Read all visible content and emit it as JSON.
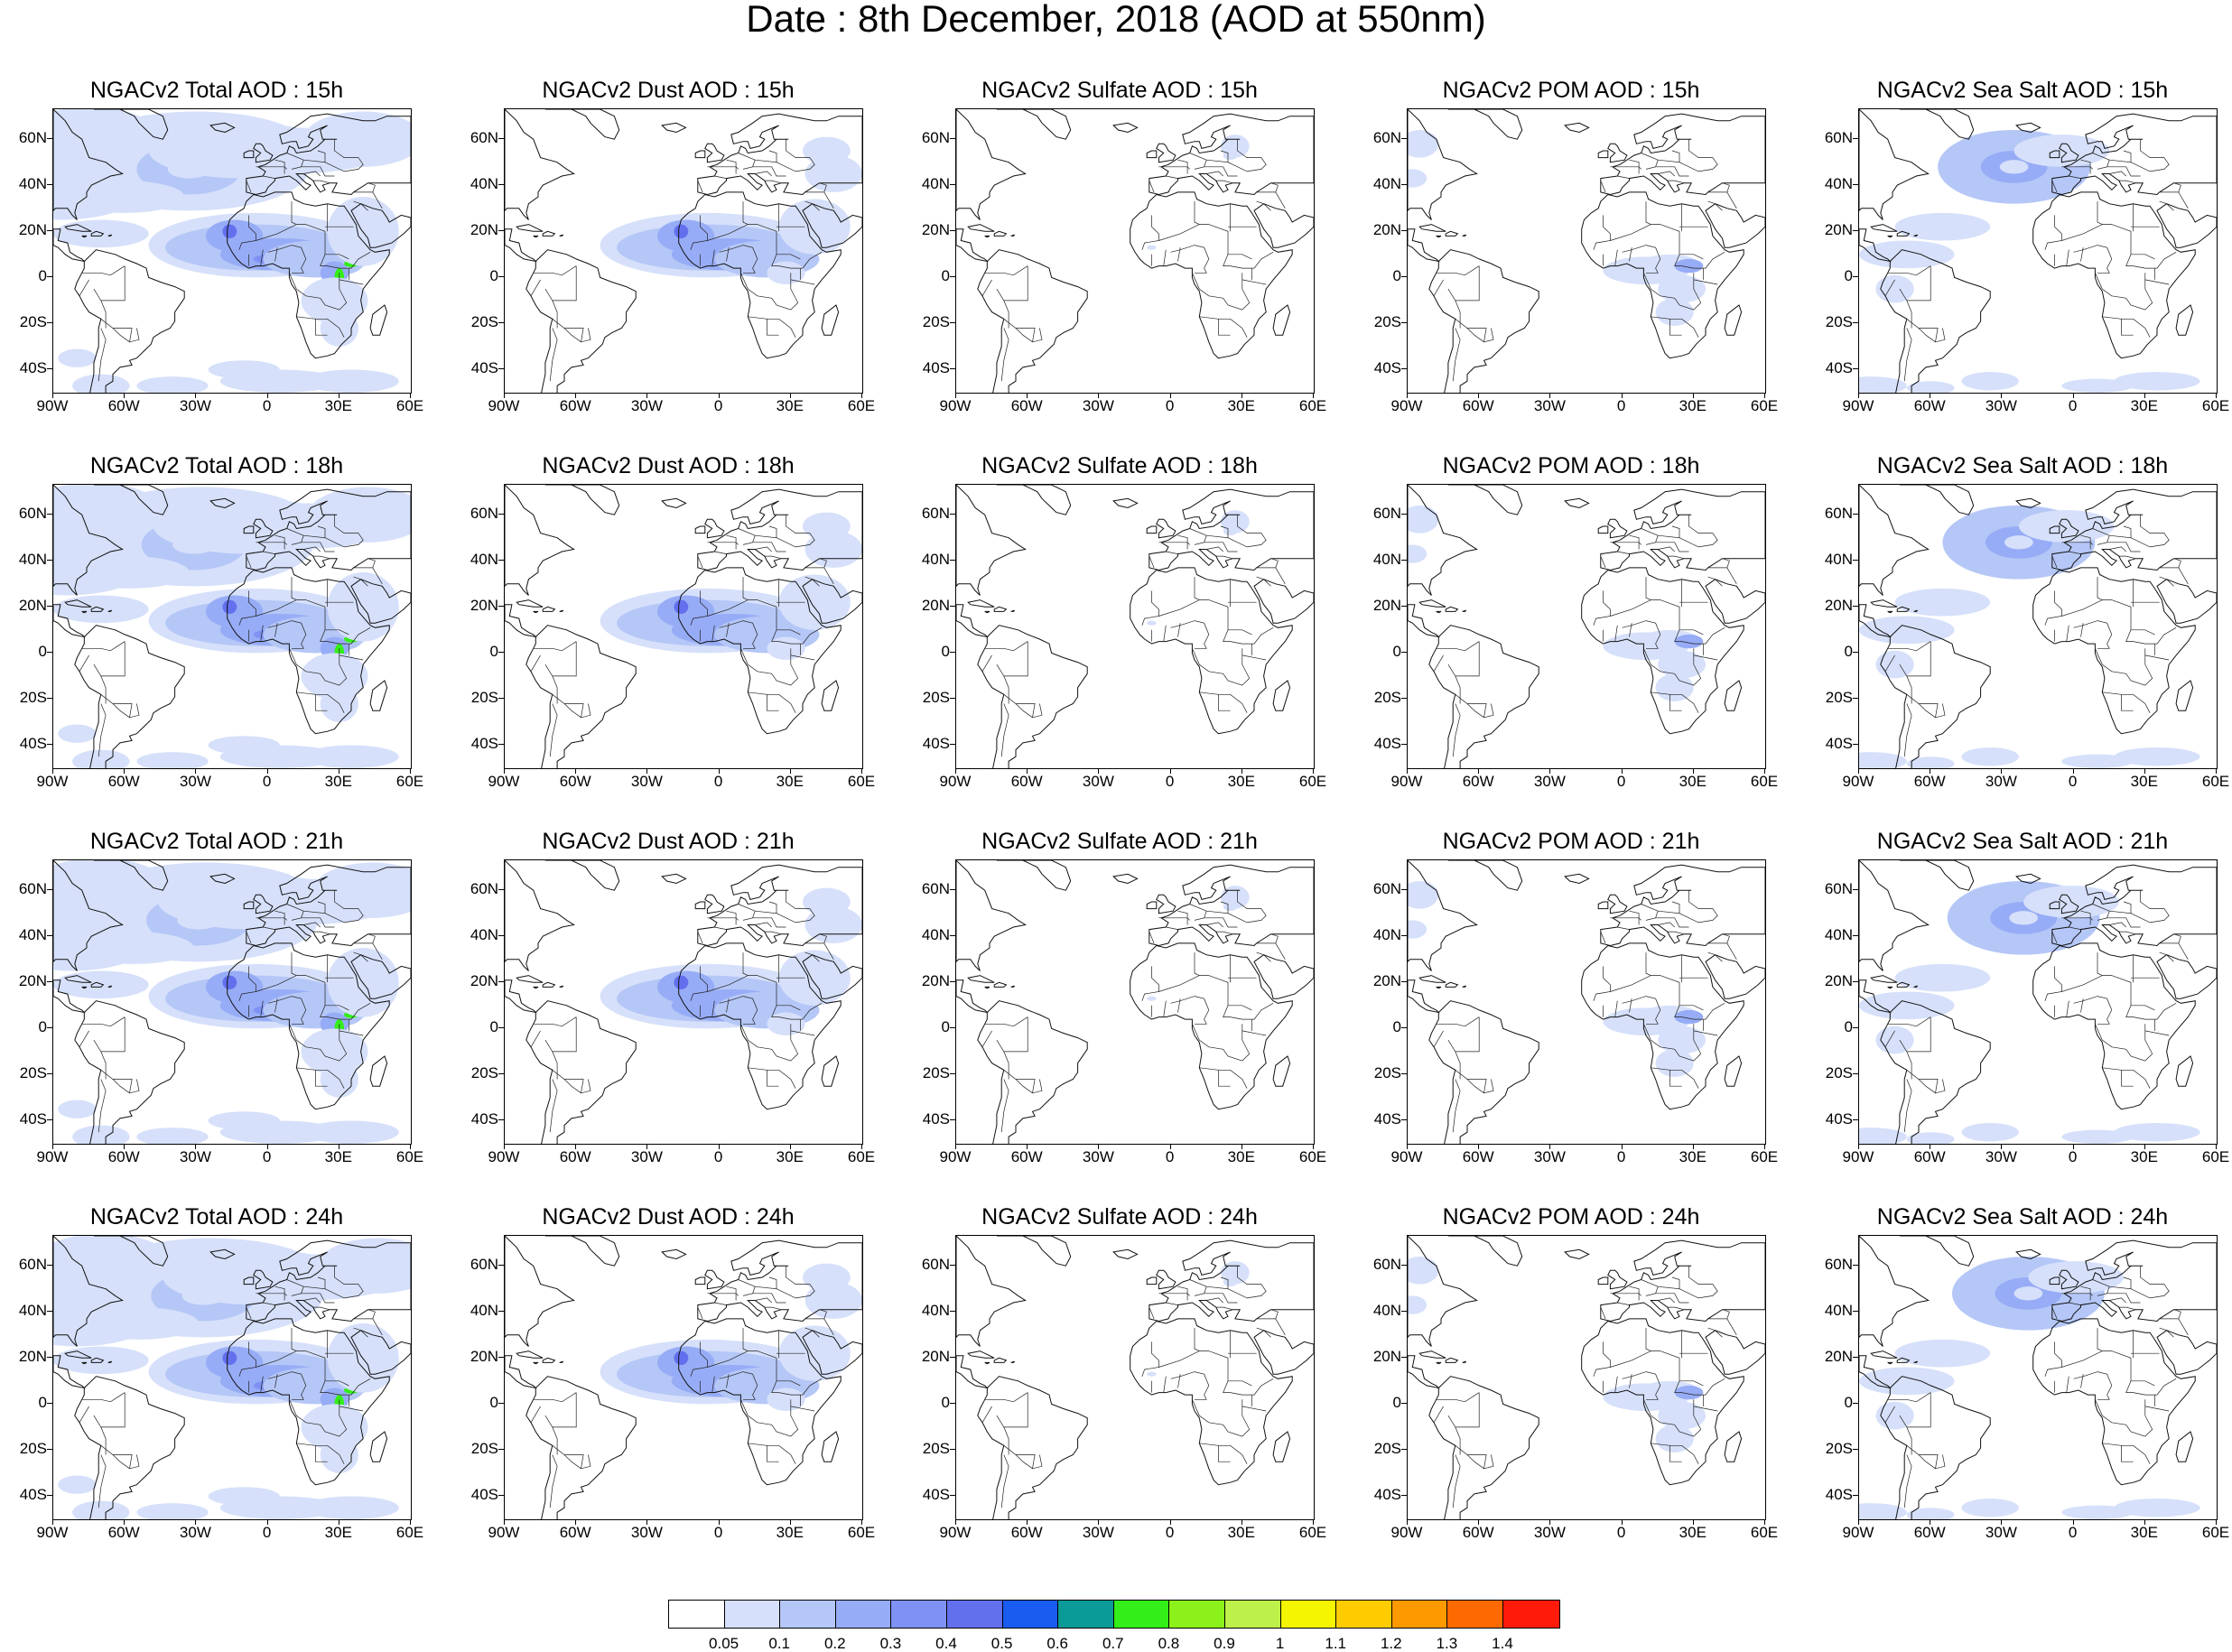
{
  "title": "Date : 8th December, 2018 (AOD at 550nm)",
  "axes": {
    "lat_labels": [
      "60N",
      "40N",
      "20N",
      "0",
      "20S",
      "40S"
    ],
    "lat_values": [
      60,
      40,
      20,
      0,
      -20,
      -40
    ],
    "lon_labels": [
      "90W",
      "60W",
      "30W",
      "0",
      "30E",
      "60E"
    ],
    "lon_values": [
      -90,
      -60,
      -30,
      0,
      30,
      60
    ],
    "lat_range": [
      -50,
      73
    ],
    "lon_range": [
      -90,
      60
    ]
  },
  "panels": [
    {
      "title": "NGACv2 Total AOD : 15h",
      "species": "total",
      "hour": 15
    },
    {
      "title": "NGACv2 Dust AOD : 15h",
      "species": "dust",
      "hour": 15
    },
    {
      "title": "NGACv2 Sulfate AOD : 15h",
      "species": "sulfate",
      "hour": 15
    },
    {
      "title": "NGACv2 POM AOD : 15h",
      "species": "pom",
      "hour": 15
    },
    {
      "title": "NGACv2 Sea Salt AOD : 15h",
      "species": "seasalt",
      "hour": 15
    },
    {
      "title": "NGACv2 Total AOD : 18h",
      "species": "total",
      "hour": 18
    },
    {
      "title": "NGACv2 Dust AOD : 18h",
      "species": "dust",
      "hour": 18
    },
    {
      "title": "NGACv2 Sulfate AOD : 18h",
      "species": "sulfate",
      "hour": 18
    },
    {
      "title": "NGACv2 POM AOD : 18h",
      "species": "pom",
      "hour": 18
    },
    {
      "title": "NGACv2 Sea Salt AOD : 18h",
      "species": "seasalt",
      "hour": 18
    },
    {
      "title": "NGACv2 Total AOD : 21h",
      "species": "total",
      "hour": 21
    },
    {
      "title": "NGACv2 Dust AOD : 21h",
      "species": "dust",
      "hour": 21
    },
    {
      "title": "NGACv2 Sulfate AOD : 21h",
      "species": "sulfate",
      "hour": 21
    },
    {
      "title": "NGACv2 POM AOD : 21h",
      "species": "pom",
      "hour": 21
    },
    {
      "title": "NGACv2 Sea Salt AOD : 21h",
      "species": "seasalt",
      "hour": 21
    },
    {
      "title": "NGACv2 Total AOD : 24h",
      "species": "total",
      "hour": 24
    },
    {
      "title": "NGACv2 Dust AOD : 24h",
      "species": "dust",
      "hour": 24
    },
    {
      "title": "NGACv2 Sulfate AOD : 24h",
      "species": "sulfate",
      "hour": 24
    },
    {
      "title": "NGACv2 POM AOD : 24h",
      "species": "pom",
      "hour": 24
    },
    {
      "title": "NGACv2 Sea Salt  AOD : 24h",
      "species": "seasalt",
      "hour": 24
    }
  ],
  "colorbar": {
    "colors": [
      "#ffffff",
      "#d6e0fa",
      "#b5c7f7",
      "#97acf6",
      "#7f92f4",
      "#6370ee",
      "#1a5cf0",
      "#0a9a98",
      "#33ee18",
      "#8cf01a",
      "#bdf04a",
      "#f5f500",
      "#ffcc00",
      "#ff9900",
      "#ff6a00",
      "#ff1a0a"
    ],
    "labels": [
      "0.05",
      "0.1",
      "0.2",
      "0.3",
      "0.4",
      "0.5",
      "0.6",
      "0.7",
      "0.8",
      "0.9",
      "1",
      "1.1",
      "1.2",
      "1.3",
      "1.4"
    ]
  }
}
